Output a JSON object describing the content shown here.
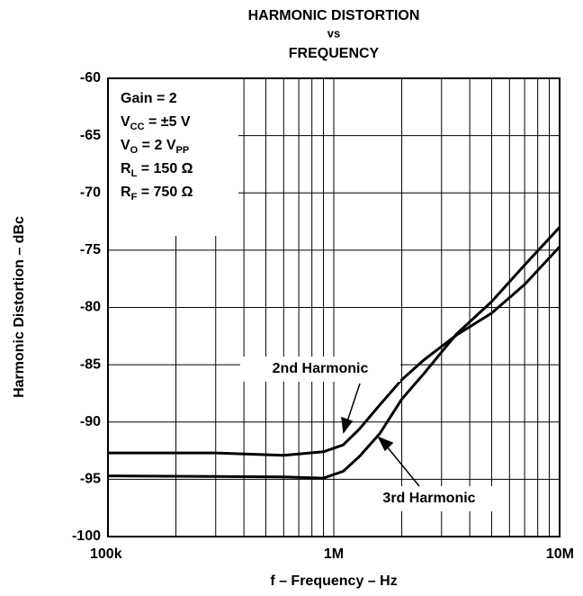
{
  "chart_data": {
    "type": "line",
    "title": [
      "HARMONIC DISTORTION",
      "vs",
      "FREQUENCY"
    ],
    "x_label": "f – Frequency – Hz",
    "y_label": "Harmonic Distortion – dBc",
    "log_x": true,
    "grid": true,
    "xlim": [
      100000,
      10000000
    ],
    "xticks": [
      {
        "value": 100000,
        "label": "100k"
      },
      {
        "value": 1000000,
        "label": "1M"
      },
      {
        "value": 10000000,
        "label": "10M"
      }
    ],
    "x_minor_ticks": [
      200000,
      300000,
      400000,
      500000,
      600000,
      700000,
      800000,
      900000,
      2000000,
      3000000,
      4000000,
      5000000,
      6000000,
      7000000,
      8000000,
      9000000
    ],
    "ylim": [
      -100,
      -60
    ],
    "yticks": [
      -100,
      -95,
      -90,
      -85,
      -80,
      -75,
      -70,
      -65,
      -60
    ],
    "conditions": [
      [
        "Gain = 2"
      ],
      [
        "V",
        "CC",
        " = ±5 V"
      ],
      [
        "V",
        "O",
        " = 2 V",
        "PP"
      ],
      [
        "R",
        "L",
        " = 150 Ω"
      ],
      [
        "R",
        "F",
        " = 750 Ω"
      ]
    ],
    "x": [
      100000,
      300000,
      600000,
      900000,
      1100000,
      1300000,
      1600000,
      2000000,
      2500000,
      3000000,
      3500000,
      5000000,
      7000000,
      10000000
    ],
    "series": [
      {
        "name": "2nd Harmonic",
        "color": "#000000",
        "values": [
          -92.7,
          -92.7,
          -92.9,
          -92.6,
          -92,
          -90.6,
          -88.5,
          -86.3,
          -84.6,
          -83.4,
          -82.4,
          -80.5,
          -78,
          -74.7
        ]
      },
      {
        "name": "3rd Harmonic",
        "color": "#000000",
        "values": [
          -94.7,
          -94.75,
          -94.8,
          -94.9,
          -94.3,
          -93,
          -91,
          -88,
          -85.8,
          -83.9,
          -82.3,
          -79.5,
          -76.3,
          -73
        ]
      }
    ]
  }
}
